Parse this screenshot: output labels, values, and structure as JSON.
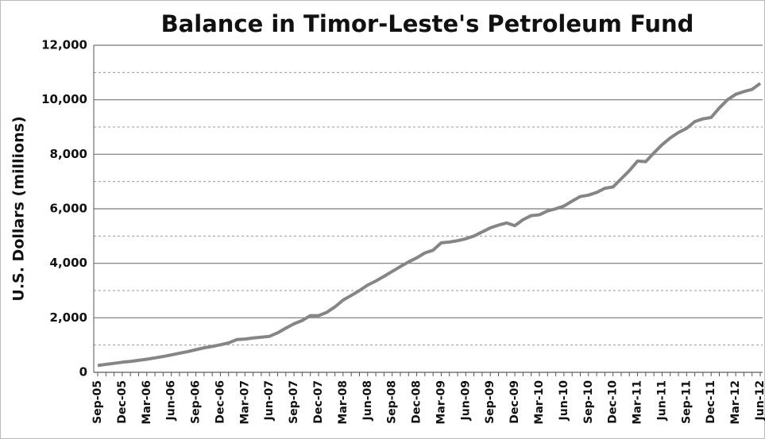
{
  "chart_data": {
    "type": "line",
    "title": "Balance in Timor-Leste's Petroleum Fund",
    "y_label": "U.S. Dollars (millions)",
    "categories": [
      "Sep-05",
      null,
      null,
      "Dec-05",
      null,
      null,
      "Mar-06",
      null,
      null,
      "Jun-06",
      null,
      null,
      "Sep-06",
      null,
      null,
      "Dec-06",
      null,
      null,
      "Mar-07",
      null,
      null,
      "Jun-07",
      null,
      null,
      "Sep-07",
      null,
      null,
      "Dec-07",
      null,
      null,
      "Mar-08",
      null,
      null,
      "Jun-08",
      null,
      null,
      "Sep-08",
      null,
      null,
      "Dec-08",
      null,
      null,
      "Mar-09",
      null,
      null,
      "Jun-09",
      null,
      null,
      "Sep-09",
      null,
      null,
      "Dec-09",
      null,
      null,
      "Mar-10",
      null,
      null,
      "Jun-10",
      null,
      null,
      "Sep-10",
      null,
      null,
      "Dec-10",
      null,
      null,
      "Mar-11",
      null,
      null,
      "Jun-11",
      null,
      null,
      "Sep-11",
      null,
      null,
      "Dec-11",
      null,
      null,
      "Mar-12",
      null,
      null,
      "Jun-12"
    ],
    "series": [
      {
        "name": "Balance",
        "color": "#858585",
        "values": [
          250,
          290,
          330,
          370,
          400,
          440,
          480,
          530,
          580,
          640,
          700,
          760,
          830,
          900,
          950,
          1010,
          1080,
          1200,
          1220,
          1260,
          1290,
          1320,
          1450,
          1620,
          1780,
          1900,
          2080,
          2080,
          2200,
          2400,
          2650,
          2820,
          3000,
          3200,
          3350,
          3520,
          3700,
          3880,
          4050,
          4200,
          4380,
          4480,
          4750,
          4780,
          4830,
          4900,
          5000,
          5150,
          5300,
          5400,
          5480,
          5380,
          5600,
          5750,
          5780,
          5920,
          6000,
          6100,
          6280,
          6450,
          6500,
          6600,
          6750,
          6800,
          7100,
          7400,
          7750,
          7730,
          8050,
          8350,
          8600,
          8800,
          8950,
          9200,
          9300,
          9350,
          9700,
          10000,
          10200,
          10300,
          10380,
          10600
        ]
      }
    ],
    "ylim": [
      0,
      12000
    ],
    "yticks": [
      0,
      {
        "value": 2000,
        "label": "2,000"
      },
      {
        "value": 4000,
        "label": "4,000"
      },
      {
        "value": 6000,
        "label": "6,000"
      },
      {
        "value": 8000,
        "label": "8,000"
      },
      {
        "value": 10000,
        "label": "10,000"
      },
      {
        "value": 12000,
        "label": "12,000"
      }
    ],
    "minor_yticks": [
      1000,
      3000,
      5000,
      7000,
      9000,
      11000
    ],
    "grid": true
  }
}
